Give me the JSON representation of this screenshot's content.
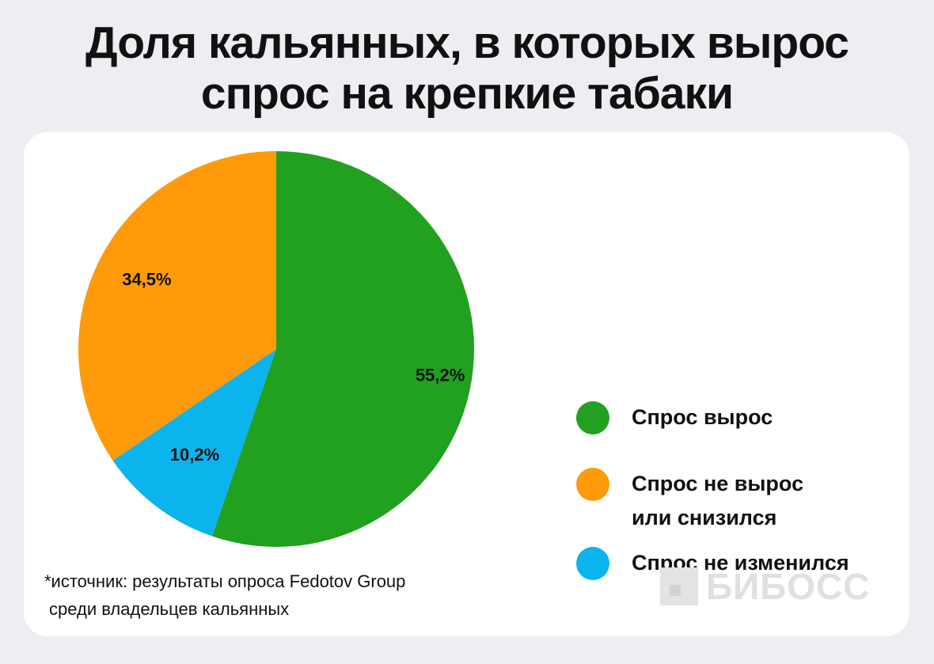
{
  "title": {
    "line1": "Доля кальянных, в которых вырос",
    "line2": "спрос на крепкие табаки"
  },
  "chart_data": {
    "type": "pie",
    "slices": [
      {
        "label": "Спрос вырос",
        "value": 55.2,
        "display": "55,2%",
        "color": "#22a020"
      },
      {
        "label": "Спрос не изменился",
        "value": 10.2,
        "display": "10,2%",
        "color": "#0cb4ee"
      },
      {
        "label": "Спрос не вырос или снизился",
        "value": 34.5,
        "display": "34,5%",
        "color": "#ff9a0a"
      }
    ],
    "legend_placement": "right"
  },
  "legend": [
    {
      "lines": [
        "Спрос вырос"
      ],
      "color": "#22a020"
    },
    {
      "lines": [
        "Спрос не вырос",
        "или снизился"
      ],
      "color": "#ff9a0a"
    },
    {
      "lines": [
        "Спрос не изменился"
      ],
      "color": "#0cb4ee"
    }
  ],
  "source": {
    "line1": "*источник: результаты опроса Fedotov Group",
    "line2": "среди владельцев кальянных"
  },
  "logo": {
    "text": "БИБОСС",
    "icon": "logo-square-icon"
  }
}
